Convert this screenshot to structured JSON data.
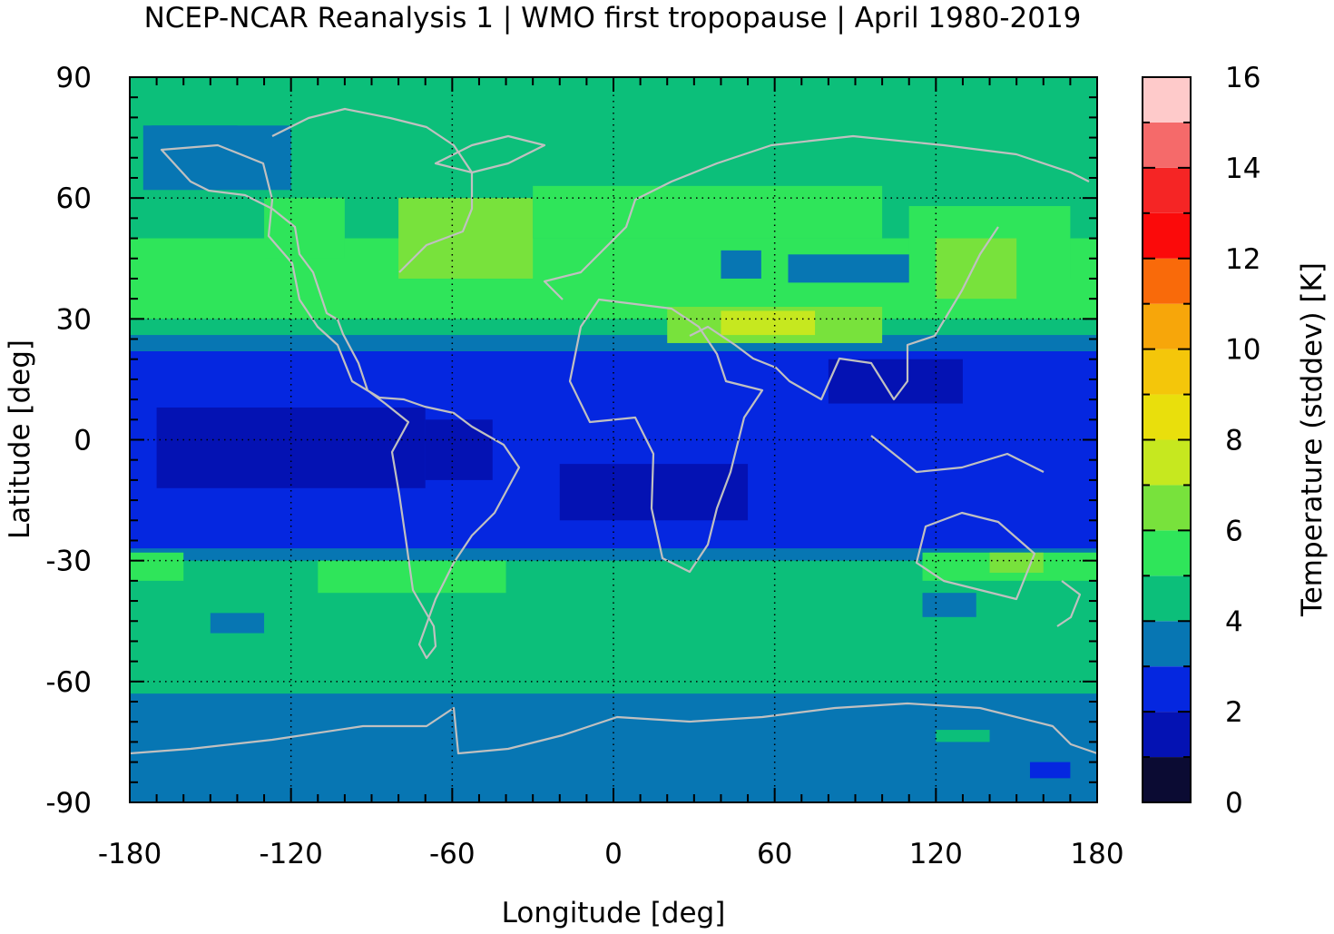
{
  "title": "NCEP-NCAR Reanalysis 1 | WMO first tropopause | April 1980-2019",
  "chart_data": {
    "type": "heatmap",
    "title": "NCEP-NCAR Reanalysis 1 | WMO first tropopause | April 1980-2019",
    "xlabel": "Longitude [deg]",
    "ylabel": "Latitude [deg]",
    "colorbar_label": "Temperature (stddev) [K]",
    "xlim": [
      -180,
      180
    ],
    "ylim": [
      -90,
      90
    ],
    "x_ticks": [
      -180,
      -120,
      -60,
      0,
      60,
      120,
      180
    ],
    "y_ticks": [
      -90,
      -60,
      -30,
      0,
      30,
      60,
      90
    ],
    "x_tick_labels": [
      "-180",
      "-120",
      "-60",
      "0",
      "60",
      "120",
      "180"
    ],
    "y_tick_labels": [
      "-90",
      "-60",
      "-30",
      "0",
      "30",
      "60",
      "90"
    ],
    "colorbar_ticks": [
      "0",
      "2",
      "4",
      "6",
      "8",
      "10",
      "12",
      "14",
      "16"
    ],
    "colorbar_range": [
      0,
      16
    ],
    "colorbar_levels": [
      {
        "from": 0,
        "to": 1,
        "color": "#0b0b33"
      },
      {
        "from": 1,
        "to": 2,
        "color": "#0412b3"
      },
      {
        "from": 2,
        "to": 3,
        "color": "#0527e0"
      },
      {
        "from": 3,
        "to": 4,
        "color": "#0776b3"
      },
      {
        "from": 4,
        "to": 5,
        "color": "#0cbf7a"
      },
      {
        "from": 5,
        "to": 6,
        "color": "#2fe55a"
      },
      {
        "from": 6,
        "to": 7,
        "color": "#78e23c"
      },
      {
        "from": 7,
        "to": 8,
        "color": "#c6e81f"
      },
      {
        "from": 8,
        "to": 9,
        "color": "#e9df0c"
      },
      {
        "from": 9,
        "to": 10,
        "color": "#f4c60a"
      },
      {
        "from": 10,
        "to": 11,
        "color": "#f7a60a"
      },
      {
        "from": 11,
        "to": 12,
        "color": "#f96a0a"
      },
      {
        "from": 12,
        "to": 13,
        "color": "#fb0a0a"
      },
      {
        "from": 13,
        "to": 14,
        "color": "#f52525"
      },
      {
        "from": 14,
        "to": 15,
        "color": "#f56a6a"
      },
      {
        "from": 15,
        "to": 16,
        "color": "#fecaca"
      }
    ],
    "field_regions": [
      {
        "lon": [
          -180,
          180
        ],
        "lat": [
          -90,
          90
        ],
        "value": 4.5
      },
      {
        "lon": [
          -180,
          180
        ],
        "lat": [
          -90,
          -63
        ],
        "value": 3.5
      },
      {
        "lon": [
          -180,
          180
        ],
        "lat": [
          -27,
          22
        ],
        "value": 2.5
      },
      {
        "lon": [
          -180,
          180
        ],
        "lat": [
          -30,
          -27
        ],
        "value": 3.5
      },
      {
        "lon": [
          -180,
          180
        ],
        "lat": [
          22,
          26
        ],
        "value": 3.5
      },
      {
        "lon": [
          -180,
          180
        ],
        "lat": [
          30,
          50
        ],
        "value": 5.5
      },
      {
        "lon": [
          -130,
          -100
        ],
        "lat": [
          45,
          60
        ],
        "value": 5.5
      },
      {
        "lon": [
          -30,
          100
        ],
        "lat": [
          50,
          63
        ],
        "value": 5.5
      },
      {
        "lon": [
          110,
          170
        ],
        "lat": [
          40,
          58
        ],
        "value": 5.5
      },
      {
        "lon": [
          -80,
          -30
        ],
        "lat": [
          40,
          60
        ],
        "value": 6.5
      },
      {
        "lon": [
          120,
          150
        ],
        "lat": [
          35,
          50
        ],
        "value": 6.5
      },
      {
        "lon": [
          -180,
          -160
        ],
        "lat": [
          -35,
          -28
        ],
        "value": 5.5
      },
      {
        "lon": [
          -110,
          -40
        ],
        "lat": [
          -38,
          -30
        ],
        "value": 5.5
      },
      {
        "lon": [
          115,
          180
        ],
        "lat": [
          -35,
          -28
        ],
        "value": 5.5
      },
      {
        "lon": [
          140,
          160
        ],
        "lat": [
          -33,
          -28
        ],
        "value": 6.5
      },
      {
        "lon": [
          20,
          100
        ],
        "lat": [
          24,
          33
        ],
        "value": 6.5
      },
      {
        "lon": [
          40,
          75
        ],
        "lat": [
          26,
          32
        ],
        "value": 7.5
      },
      {
        "lon": [
          -170,
          -70
        ],
        "lat": [
          -12,
          8
        ],
        "value": 1.5
      },
      {
        "lon": [
          -70,
          -45
        ],
        "lat": [
          -10,
          5
        ],
        "value": 1.5
      },
      {
        "lon": [
          -20,
          50
        ],
        "lat": [
          -20,
          -6
        ],
        "value": 1.5
      },
      {
        "lon": [
          80,
          130
        ],
        "lat": [
          9,
          20
        ],
        "value": 1.5
      },
      {
        "lon": [
          -172,
          -140
        ],
        "lat": [
          75,
          78
        ],
        "value": 3.5
      },
      {
        "lon": [
          -175,
          -120
        ],
        "lat": [
          62,
          78
        ],
        "value": 3.5
      },
      {
        "lon": [
          40,
          55
        ],
        "lat": [
          40,
          47
        ],
        "value": 3.5
      },
      {
        "lon": [
          65,
          110
        ],
        "lat": [
          39,
          46
        ],
        "value": 3.5
      },
      {
        "lon": [
          115,
          135
        ],
        "lat": [
          -44,
          -38
        ],
        "value": 3.5
      },
      {
        "lon": [
          -150,
          -130
        ],
        "lat": [
          -48,
          -43
        ],
        "value": 3.5
      },
      {
        "lon": [
          120,
          140
        ],
        "lat": [
          -75,
          -72
        ],
        "value": 4.5
      },
      {
        "lon": [
          155,
          170
        ],
        "lat": [
          -84,
          -80
        ],
        "value": 2.5
      }
    ]
  }
}
